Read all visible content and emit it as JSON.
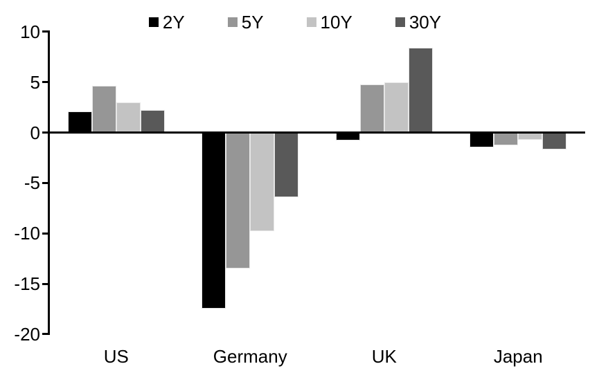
{
  "chart_data": {
    "type": "bar",
    "title": "",
    "xlabel": "",
    "ylabel": "",
    "categories": [
      "US",
      "Germany",
      "UK",
      "Japan"
    ],
    "series": [
      {
        "name": "2Y",
        "color": "#000000",
        "values": [
          2.1,
          -17.5,
          -0.8,
          -1.5
        ]
      },
      {
        "name": "5Y",
        "color": "#969696",
        "values": [
          4.6,
          -13.5,
          4.8,
          -1.3
        ]
      },
      {
        "name": "10Y",
        "color": "#c3c3c3",
        "values": [
          3.0,
          -9.8,
          5.0,
          -0.7
        ]
      },
      {
        "name": "30Y",
        "color": "#595959",
        "values": [
          2.2,
          -6.4,
          8.4,
          -1.7
        ]
      }
    ],
    "ylim": [
      -20,
      10
    ],
    "y_ticks": [
      10,
      5,
      0,
      -5,
      -10,
      -15,
      -20
    ],
    "grid": false,
    "legend_position": "top",
    "axis_color": "#000000"
  }
}
